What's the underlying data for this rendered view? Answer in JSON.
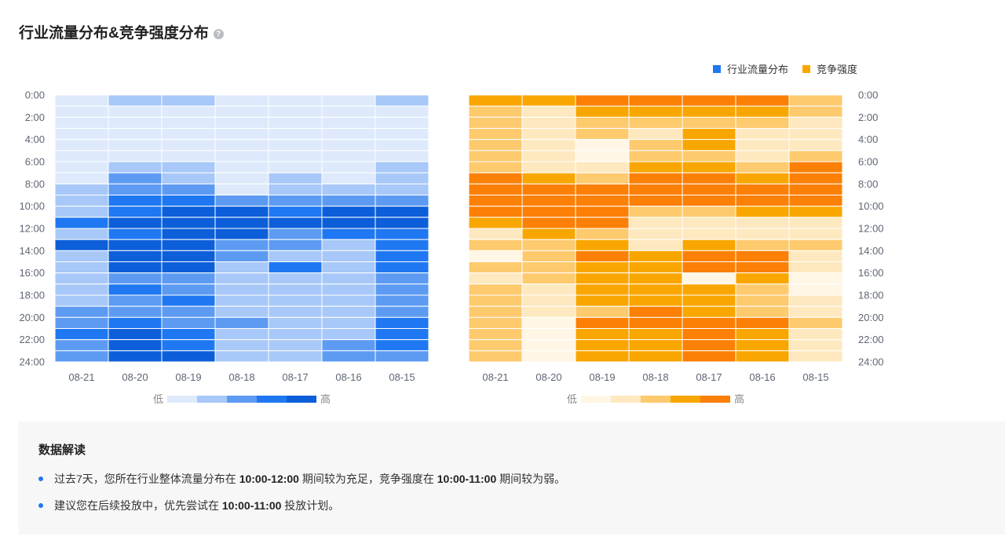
{
  "header": {
    "title": "行业流量分布&竞争强度分布",
    "help_icon": "question-circle-icon"
  },
  "legend": {
    "items": [
      {
        "label": "行业流量分布",
        "color": "#1f78f2"
      },
      {
        "label": "竞争强度",
        "color": "#f9a600"
      }
    ]
  },
  "chart_data": [
    {
      "type": "heatmap",
      "name": "行业流量分布",
      "x_categories": [
        "08-21",
        "08-20",
        "08-19",
        "08-18",
        "08-17",
        "08-16",
        "08-15"
      ],
      "y_tick_labels": [
        "0:00",
        "2:00",
        "4:00",
        "6:00",
        "8:00",
        "10:00",
        "12:00",
        "14:00",
        "16:00",
        "18:00",
        "20:00",
        "22:00",
        "24:00"
      ],
      "rows": 24,
      "scale": {
        "low_label": "低",
        "high_label": "高",
        "colors": [
          "#deeafc",
          "#a7c8f8",
          "#5d9bf3",
          "#1f78f2",
          "#0c5fd9"
        ]
      },
      "values": [
        [
          0,
          1,
          1,
          0,
          0,
          0,
          1
        ],
        [
          0,
          0,
          0,
          0,
          0,
          0,
          0
        ],
        [
          0,
          0,
          0,
          0,
          0,
          0,
          0
        ],
        [
          0,
          0,
          0,
          0,
          0,
          0,
          0
        ],
        [
          0,
          0,
          0,
          0,
          0,
          0,
          0
        ],
        [
          0,
          0,
          0,
          0,
          0,
          0,
          0
        ],
        [
          0,
          1,
          1,
          0,
          0,
          0,
          1
        ],
        [
          0,
          2,
          1,
          0,
          1,
          0,
          1
        ],
        [
          1,
          2,
          2,
          0,
          1,
          1,
          1
        ],
        [
          1,
          3,
          3,
          2,
          2,
          2,
          2
        ],
        [
          1,
          3,
          4,
          4,
          3,
          4,
          4
        ],
        [
          3,
          4,
          4,
          4,
          4,
          4,
          4
        ],
        [
          1,
          3,
          4,
          4,
          2,
          3,
          3
        ],
        [
          4,
          4,
          4,
          2,
          2,
          1,
          3
        ],
        [
          1,
          4,
          4,
          2,
          1,
          1,
          3
        ],
        [
          1,
          4,
          4,
          1,
          3,
          1,
          3
        ],
        [
          1,
          2,
          2,
          1,
          1,
          1,
          2
        ],
        [
          1,
          3,
          2,
          1,
          1,
          1,
          2
        ],
        [
          1,
          2,
          3,
          1,
          1,
          1,
          2
        ],
        [
          2,
          2,
          2,
          1,
          1,
          1,
          2
        ],
        [
          2,
          3,
          2,
          2,
          1,
          1,
          3
        ],
        [
          3,
          4,
          3,
          1,
          1,
          1,
          3
        ],
        [
          2,
          4,
          3,
          1,
          1,
          2,
          3
        ],
        [
          2,
          4,
          4,
          1,
          1,
          2,
          2
        ]
      ]
    },
    {
      "type": "heatmap",
      "name": "竞争强度",
      "x_categories": [
        "08-21",
        "08-20",
        "08-19",
        "08-18",
        "08-17",
        "08-16",
        "08-15"
      ],
      "y_tick_labels": [
        "0:00",
        "2:00",
        "4:00",
        "6:00",
        "8:00",
        "10:00",
        "12:00",
        "14:00",
        "16:00",
        "18:00",
        "20:00",
        "22:00",
        "24:00"
      ],
      "rows": 24,
      "scale": {
        "low_label": "低",
        "high_label": "高",
        "colors": [
          "#fff6e5",
          "#fee8bf",
          "#fdca6e",
          "#f9a600",
          "#fb8005"
        ]
      },
      "values": [
        [
          3,
          3,
          4,
          4,
          4,
          4,
          2
        ],
        [
          2,
          1,
          3,
          3,
          3,
          3,
          2
        ],
        [
          2,
          1,
          2,
          2,
          2,
          2,
          1
        ],
        [
          2,
          1,
          2,
          1,
          3,
          1,
          1
        ],
        [
          2,
          1,
          0,
          2,
          3,
          1,
          1
        ],
        [
          2,
          1,
          0,
          2,
          2,
          1,
          2
        ],
        [
          2,
          1,
          1,
          3,
          3,
          2,
          4
        ],
        [
          4,
          3,
          2,
          4,
          4,
          3,
          4
        ],
        [
          4,
          4,
          4,
          4,
          4,
          4,
          4
        ],
        [
          4,
          4,
          4,
          4,
          4,
          4,
          4
        ],
        [
          4,
          4,
          4,
          2,
          2,
          3,
          3
        ],
        [
          3,
          4,
          4,
          1,
          1,
          1,
          1
        ],
        [
          1,
          3,
          2,
          1,
          1,
          1,
          1
        ],
        [
          2,
          2,
          3,
          1,
          3,
          2,
          2
        ],
        [
          0,
          2,
          4,
          3,
          4,
          4,
          1
        ],
        [
          2,
          2,
          3,
          3,
          4,
          4,
          1
        ],
        [
          1,
          2,
          3,
          3,
          0,
          3,
          0
        ],
        [
          2,
          1,
          3,
          3,
          3,
          2,
          0
        ],
        [
          2,
          1,
          3,
          3,
          3,
          2,
          1
        ],
        [
          2,
          1,
          2,
          4,
          3,
          2,
          1
        ],
        [
          2,
          0,
          4,
          4,
          4,
          4,
          2
        ],
        [
          2,
          0,
          3,
          3,
          4,
          3,
          1
        ],
        [
          2,
          0,
          3,
          3,
          4,
          3,
          1
        ],
        [
          2,
          0,
          3,
          3,
          4,
          3,
          1
        ]
      ]
    }
  ],
  "insight": {
    "title": "数据解读",
    "line1": {
      "p1": "过去7天，您所在行业整体流量分布在 ",
      "b1": "10:00-12:00",
      "p2": " 期间较为充足，竞争强度在 ",
      "b2": "10:00-11:00",
      "p3": " 期间较为弱。"
    },
    "line2": {
      "p1": "建议您在后续投放中，优先尝试在 ",
      "b1": "10:00-11:00",
      "p2": " 投放计划。"
    }
  }
}
